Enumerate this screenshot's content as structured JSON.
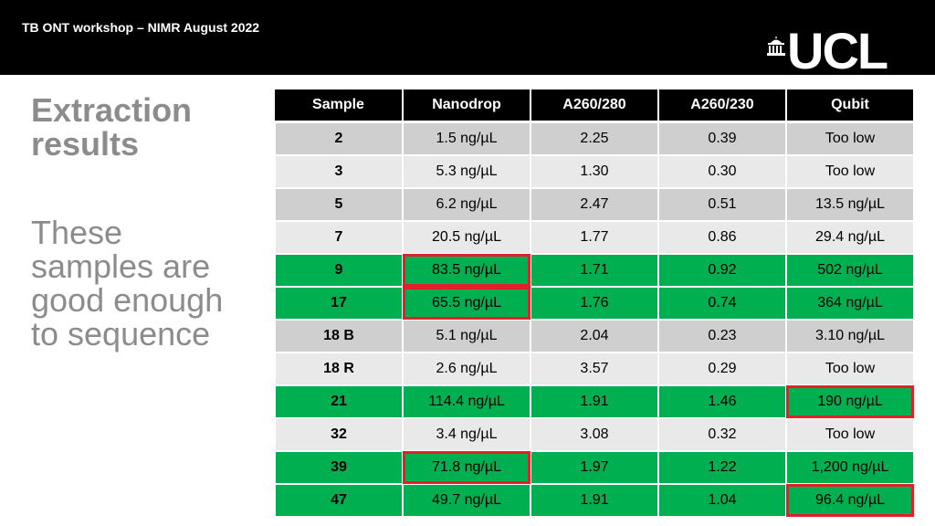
{
  "header": {
    "title": "TB ONT workshop – NIMR August 2022",
    "logo_text": "UCL"
  },
  "slide": {
    "heading_line1": "Extraction",
    "heading_line2": "results",
    "subtext_line1": "These",
    "subtext_line2": "samples are",
    "subtext_line3": "good enough",
    "subtext_line4": "to sequence"
  },
  "colors": {
    "good_row": "#00b050",
    "highlight_border": "#e3202a",
    "header_bg": "#000000"
  },
  "table": {
    "columns": [
      "Sample",
      "Nanodrop",
      "A260/280",
      "A260/230",
      "Qubit"
    ],
    "rows": [
      {
        "sample": "2",
        "nanodrop": "1.5 ng/µL",
        "a260_280": "2.25",
        "a260_230": "0.39",
        "qubit": "Too low",
        "good": false,
        "flag_nanodrop": false,
        "flag_qubit": false
      },
      {
        "sample": "3",
        "nanodrop": "5.3 ng/µL",
        "a260_280": "1.30",
        "a260_230": "0.30",
        "qubit": "Too low",
        "good": false,
        "flag_nanodrop": false,
        "flag_qubit": false
      },
      {
        "sample": "5",
        "nanodrop": "6.2 ng/µL",
        "a260_280": "2.47",
        "a260_230": "0.51",
        "qubit": "13.5 ng/µL",
        "good": false,
        "flag_nanodrop": false,
        "flag_qubit": false
      },
      {
        "sample": "7",
        "nanodrop": "20.5 ng/µL",
        "a260_280": "1.77",
        "a260_230": "0.86",
        "qubit": "29.4 ng/µL",
        "good": false,
        "flag_nanodrop": false,
        "flag_qubit": false
      },
      {
        "sample": "9",
        "nanodrop": "83.5 ng/µL",
        "a260_280": "1.71",
        "a260_230": "0.92",
        "qubit": "502 ng/µL",
        "good": true,
        "flag_nanodrop": true,
        "flag_qubit": false
      },
      {
        "sample": "17",
        "nanodrop": "65.5 ng/µL",
        "a260_280": "1.76",
        "a260_230": "0.74",
        "qubit": "364 ng/µL",
        "good": true,
        "flag_nanodrop": true,
        "flag_qubit": false
      },
      {
        "sample": "18 B",
        "nanodrop": "5.1 ng/µL",
        "a260_280": "2.04",
        "a260_230": "0.23",
        "qubit": "3.10 ng/µL",
        "good": false,
        "flag_nanodrop": false,
        "flag_qubit": false
      },
      {
        "sample": "18 R",
        "nanodrop": "2.6 ng/µL",
        "a260_280": "3.57",
        "a260_230": "0.29",
        "qubit": "Too low",
        "good": false,
        "flag_nanodrop": false,
        "flag_qubit": false
      },
      {
        "sample": "21",
        "nanodrop": "114.4 ng/µL",
        "a260_280": "1.91",
        "a260_230": "1.46",
        "qubit": "190 ng/µL",
        "good": true,
        "flag_nanodrop": false,
        "flag_qubit": true
      },
      {
        "sample": "32",
        "nanodrop": "3.4 ng/µL",
        "a260_280": "3.08",
        "a260_230": "0.32",
        "qubit": "Too low",
        "good": false,
        "flag_nanodrop": false,
        "flag_qubit": false
      },
      {
        "sample": "39",
        "nanodrop": "71.8 ng/µL",
        "a260_280": "1.97",
        "a260_230": "1.22",
        "qubit": "1,200 ng/µL",
        "good": true,
        "flag_nanodrop": true,
        "flag_qubit": false
      },
      {
        "sample": "47",
        "nanodrop": "49.7 ng/µL",
        "a260_280": "1.91",
        "a260_230": "1.04",
        "qubit": "96.4 ng/µL",
        "good": true,
        "flag_nanodrop": false,
        "flag_qubit": true
      }
    ]
  }
}
